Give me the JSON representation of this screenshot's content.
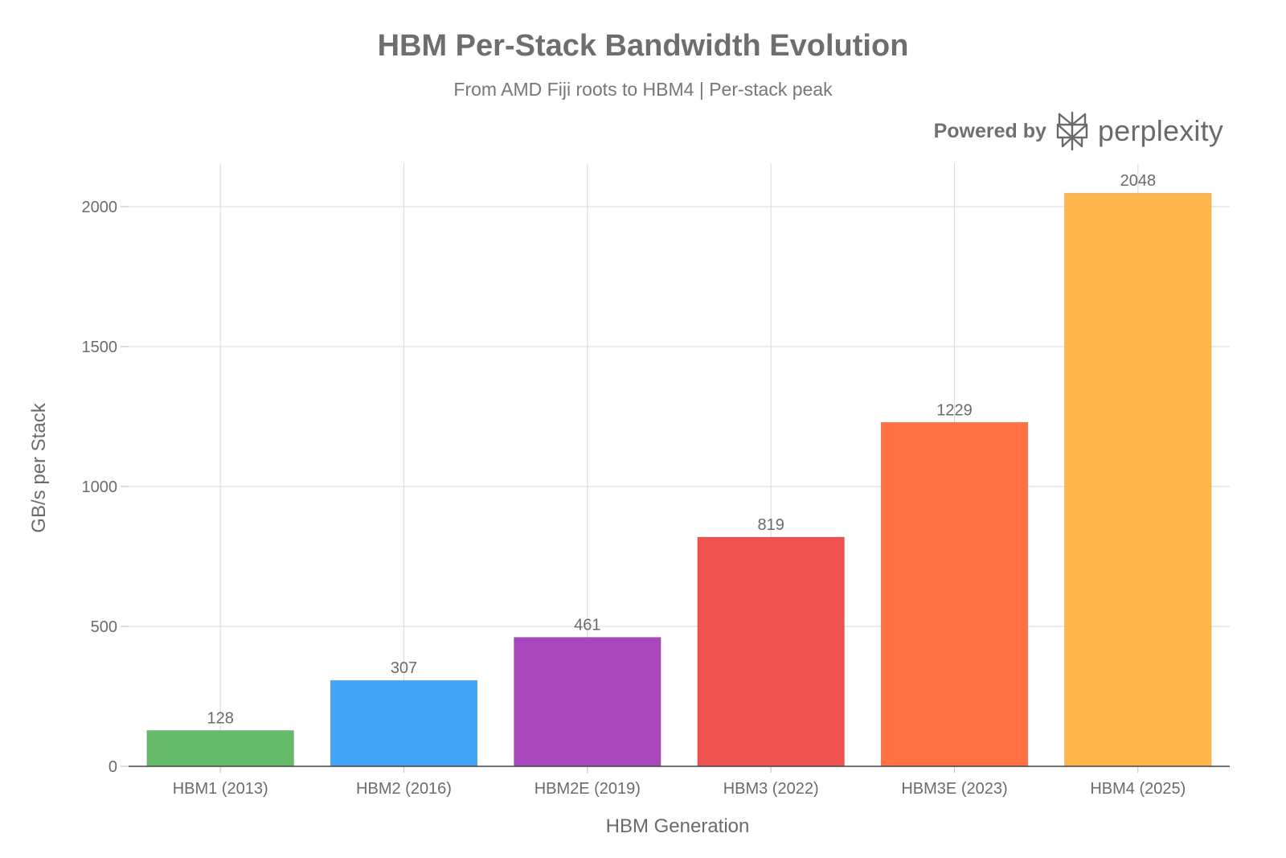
{
  "header": {
    "title": "HBM Per-Stack Bandwidth Evolution",
    "subtitle": "From AMD Fiji roots to HBM4 | Per-stack peak"
  },
  "branding": {
    "powered_by": "Powered by",
    "name": "perplexity",
    "logo_icon": "perplexity-logo-icon"
  },
  "chart_data": {
    "type": "bar",
    "title": "HBM Per-Stack Bandwidth Evolution",
    "subtitle": "From AMD Fiji roots to HBM4 | Per-stack peak",
    "xlabel": "HBM Generation",
    "ylabel": "GB/s per Stack",
    "categories": [
      "HBM1 (2013)",
      "HBM2 (2016)",
      "HBM2E (2019)",
      "HBM3 (2022)",
      "HBM3E (2023)",
      "HBM4 (2025)"
    ],
    "values": [
      128,
      307,
      461,
      819,
      1229,
      2048
    ],
    "data_labels": [
      "128",
      "307",
      "461",
      "819",
      "1229",
      "2048"
    ],
    "colors": [
      "#66bb6a",
      "#42a5f5",
      "#ab47bc",
      "#ef5350",
      "#ff7043",
      "#ffb74d"
    ],
    "ylim": [
      0,
      2155
    ],
    "yticks": [
      0,
      500,
      1000,
      1500,
      2000
    ],
    "ytick_labels": [
      "0",
      "500",
      "1000",
      "1500",
      "2000"
    ],
    "grid": true,
    "legend": "none"
  }
}
